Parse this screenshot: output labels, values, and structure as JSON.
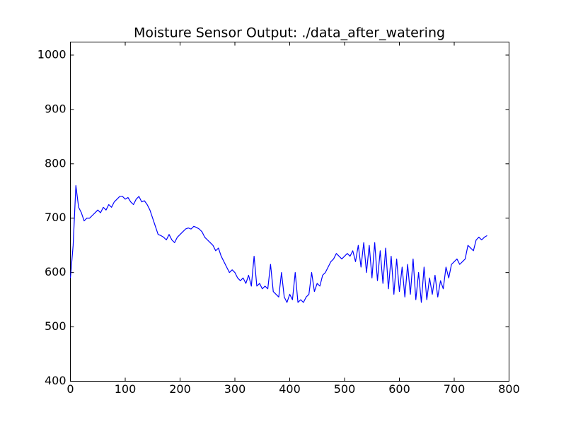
{
  "chart_data": {
    "type": "line",
    "title": "Moisture Sensor Output: ./data_after_watering",
    "x": [
      0,
      5,
      10,
      15,
      20,
      25,
      30,
      35,
      40,
      45,
      50,
      55,
      60,
      65,
      70,
      75,
      80,
      85,
      90,
      95,
      100,
      105,
      110,
      115,
      120,
      125,
      130,
      135,
      140,
      145,
      150,
      155,
      160,
      165,
      170,
      175,
      180,
      185,
      190,
      195,
      200,
      205,
      210,
      215,
      220,
      225,
      230,
      235,
      240,
      245,
      250,
      255,
      260,
      265,
      270,
      275,
      280,
      285,
      290,
      295,
      300,
      305,
      310,
      315,
      320,
      325,
      330,
      335,
      340,
      345,
      350,
      355,
      360,
      365,
      370,
      375,
      380,
      385,
      390,
      395,
      400,
      405,
      410,
      415,
      420,
      425,
      430,
      435,
      440,
      445,
      450,
      455,
      460,
      465,
      470,
      475,
      480,
      485,
      490,
      495,
      500,
      505,
      510,
      515,
      520,
      525,
      530,
      535,
      540,
      545,
      550,
      555,
      560,
      565,
      570,
      575,
      580,
      585,
      590,
      595,
      600,
      605,
      610,
      615,
      620,
      625,
      630,
      635,
      640,
      645,
      650,
      655,
      660,
      665,
      670,
      675,
      680,
      685,
      690,
      695,
      700,
      705,
      710,
      715,
      720,
      725,
      730,
      735,
      740,
      745,
      750,
      755,
      760
    ],
    "series": [
      {
        "color": "#0000ff",
        "values": [
          590,
          650,
          760,
          720,
          710,
          695,
          700,
          700,
          705,
          710,
          715,
          710,
          720,
          715,
          725,
          720,
          730,
          735,
          740,
          740,
          735,
          738,
          730,
          725,
          735,
          740,
          730,
          732,
          725,
          715,
          700,
          685,
          670,
          668,
          665,
          660,
          670,
          660,
          655,
          665,
          670,
          675,
          680,
          682,
          680,
          685,
          683,
          680,
          675,
          665,
          660,
          655,
          650,
          640,
          645,
          630,
          620,
          610,
          600,
          605,
          600,
          590,
          585,
          590,
          580,
          595,
          575,
          630,
          575,
          580,
          570,
          575,
          570,
          615,
          565,
          560,
          555,
          600,
          555,
          545,
          560,
          550,
          600,
          545,
          550,
          545,
          555,
          560,
          600,
          565,
          580,
          575,
          595,
          600,
          610,
          620,
          625,
          635,
          630,
          625,
          630,
          635,
          630,
          640,
          620,
          650,
          610,
          655,
          600,
          650,
          590,
          655,
          585,
          640,
          580,
          645,
          570,
          630,
          560,
          625,
          565,
          610,
          555,
          615,
          560,
          625,
          550,
          600,
          545,
          610,
          550,
          590,
          560,
          595,
          555,
          585,
          570,
          610,
          590,
          615,
          620,
          625,
          615,
          620,
          625,
          650,
          645,
          640,
          660,
          665,
          660,
          665,
          668
        ]
      }
    ],
    "xlim": [
      0,
      800
    ],
    "ylim": [
      400,
      1024
    ],
    "xticks": [
      0,
      100,
      200,
      300,
      400,
      500,
      600,
      700,
      800
    ],
    "yticks": [
      400,
      500,
      600,
      700,
      800,
      900,
      1000
    ]
  }
}
